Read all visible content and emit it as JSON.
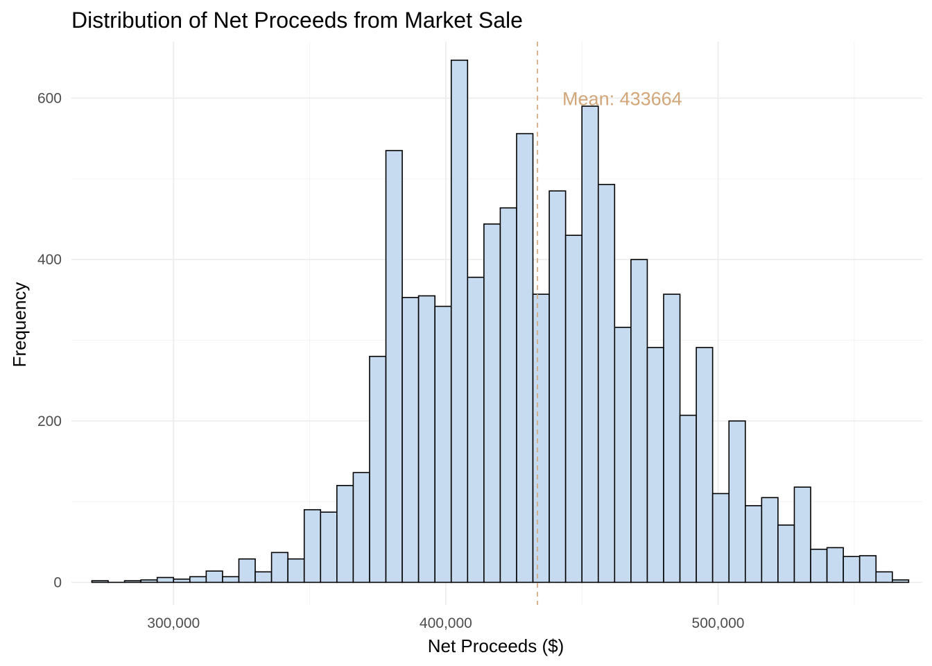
{
  "chart_data": {
    "type": "bar",
    "title": "Distribution of Net Proceeds from Market Sale",
    "xlabel": "Net Proceeds ($)",
    "ylabel": "Frequency",
    "xlim": [
      262500,
      575000
    ],
    "ylim": [
      -28,
      670
    ],
    "bin_width": 6000,
    "x_ticks": [
      300000,
      400000,
      500000
    ],
    "x_tick_labels": [
      "300,000",
      "400,000",
      "500,000"
    ],
    "y_ticks": [
      0,
      200,
      400,
      600
    ],
    "y_tick_labels": [
      "0",
      "200",
      "400",
      "600"
    ],
    "bin_centers": [
      273000,
      279000,
      285000,
      291000,
      297000,
      303000,
      309000,
      315000,
      321000,
      327000,
      333000,
      339000,
      345000,
      351000,
      357000,
      363000,
      369000,
      375000,
      381000,
      387000,
      393000,
      399000,
      405000,
      411000,
      417000,
      423000,
      429000,
      435000,
      441000,
      447000,
      453000,
      459000,
      465000,
      471000,
      477000,
      483000,
      489000,
      495000,
      501000,
      507000,
      513000,
      519000,
      525000,
      531000,
      537000,
      543000,
      549000,
      555000,
      561000,
      567000
    ],
    "values": [
      2,
      0,
      2,
      3,
      6,
      4,
      7,
      14,
      7,
      29,
      13,
      37,
      29,
      90,
      87,
      120,
      136,
      280,
      535,
      353,
      355,
      342,
      647,
      378,
      444,
      464,
      556,
      357,
      485,
      430,
      590,
      493,
      316,
      400,
      291,
      357,
      207,
      291,
      110,
      200,
      95,
      105,
      71,
      118,
      41,
      43,
      32,
      33,
      13,
      3
    ],
    "grid": true,
    "bar_fill": "#c6dbef",
    "bar_edge": "#000000",
    "mean_line": {
      "value": 433664,
      "label": "Mean: 433664",
      "color": "#d2a679",
      "style": "dashed"
    }
  }
}
